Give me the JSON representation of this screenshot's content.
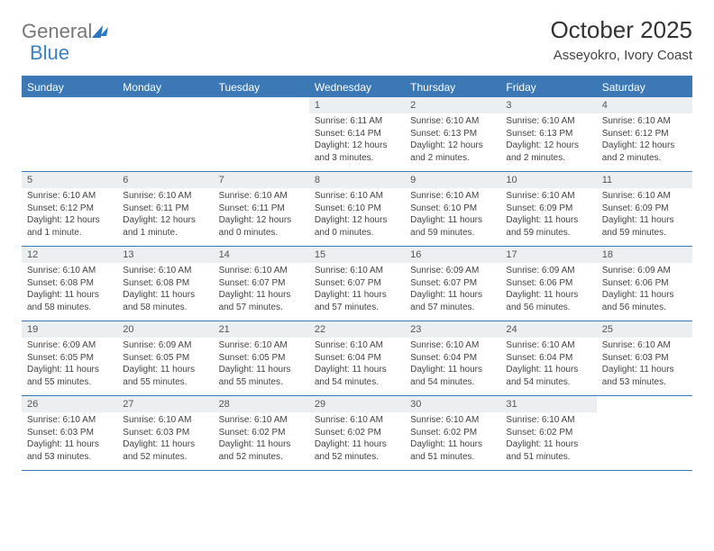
{
  "logo": {
    "text1": "General",
    "text2": "Blue"
  },
  "title": "October 2025",
  "location": "Asseyokro, Ivory Coast",
  "header_bg": "#3b78b5",
  "day_bg": "#eceff1",
  "text_color": "#444444",
  "day_names": [
    "Sunday",
    "Monday",
    "Tuesday",
    "Wednesday",
    "Thursday",
    "Friday",
    "Saturday"
  ],
  "weeks": [
    [
      {
        "empty": true
      },
      {
        "empty": true
      },
      {
        "empty": true
      },
      {
        "n": "1",
        "sr": "Sunrise: 6:11 AM",
        "ss": "Sunset: 6:14 PM",
        "dl": "Daylight: 12 hours and 3 minutes."
      },
      {
        "n": "2",
        "sr": "Sunrise: 6:10 AM",
        "ss": "Sunset: 6:13 PM",
        "dl": "Daylight: 12 hours and 2 minutes."
      },
      {
        "n": "3",
        "sr": "Sunrise: 6:10 AM",
        "ss": "Sunset: 6:13 PM",
        "dl": "Daylight: 12 hours and 2 minutes."
      },
      {
        "n": "4",
        "sr": "Sunrise: 6:10 AM",
        "ss": "Sunset: 6:12 PM",
        "dl": "Daylight: 12 hours and 2 minutes."
      }
    ],
    [
      {
        "n": "5",
        "sr": "Sunrise: 6:10 AM",
        "ss": "Sunset: 6:12 PM",
        "dl": "Daylight: 12 hours and 1 minute."
      },
      {
        "n": "6",
        "sr": "Sunrise: 6:10 AM",
        "ss": "Sunset: 6:11 PM",
        "dl": "Daylight: 12 hours and 1 minute."
      },
      {
        "n": "7",
        "sr": "Sunrise: 6:10 AM",
        "ss": "Sunset: 6:11 PM",
        "dl": "Daylight: 12 hours and 0 minutes."
      },
      {
        "n": "8",
        "sr": "Sunrise: 6:10 AM",
        "ss": "Sunset: 6:10 PM",
        "dl": "Daylight: 12 hours and 0 minutes."
      },
      {
        "n": "9",
        "sr": "Sunrise: 6:10 AM",
        "ss": "Sunset: 6:10 PM",
        "dl": "Daylight: 11 hours and 59 minutes."
      },
      {
        "n": "10",
        "sr": "Sunrise: 6:10 AM",
        "ss": "Sunset: 6:09 PM",
        "dl": "Daylight: 11 hours and 59 minutes."
      },
      {
        "n": "11",
        "sr": "Sunrise: 6:10 AM",
        "ss": "Sunset: 6:09 PM",
        "dl": "Daylight: 11 hours and 59 minutes."
      }
    ],
    [
      {
        "n": "12",
        "sr": "Sunrise: 6:10 AM",
        "ss": "Sunset: 6:08 PM",
        "dl": "Daylight: 11 hours and 58 minutes."
      },
      {
        "n": "13",
        "sr": "Sunrise: 6:10 AM",
        "ss": "Sunset: 6:08 PM",
        "dl": "Daylight: 11 hours and 58 minutes."
      },
      {
        "n": "14",
        "sr": "Sunrise: 6:10 AM",
        "ss": "Sunset: 6:07 PM",
        "dl": "Daylight: 11 hours and 57 minutes."
      },
      {
        "n": "15",
        "sr": "Sunrise: 6:10 AM",
        "ss": "Sunset: 6:07 PM",
        "dl": "Daylight: 11 hours and 57 minutes."
      },
      {
        "n": "16",
        "sr": "Sunrise: 6:09 AM",
        "ss": "Sunset: 6:07 PM",
        "dl": "Daylight: 11 hours and 57 minutes."
      },
      {
        "n": "17",
        "sr": "Sunrise: 6:09 AM",
        "ss": "Sunset: 6:06 PM",
        "dl": "Daylight: 11 hours and 56 minutes."
      },
      {
        "n": "18",
        "sr": "Sunrise: 6:09 AM",
        "ss": "Sunset: 6:06 PM",
        "dl": "Daylight: 11 hours and 56 minutes."
      }
    ],
    [
      {
        "n": "19",
        "sr": "Sunrise: 6:09 AM",
        "ss": "Sunset: 6:05 PM",
        "dl": "Daylight: 11 hours and 55 minutes."
      },
      {
        "n": "20",
        "sr": "Sunrise: 6:09 AM",
        "ss": "Sunset: 6:05 PM",
        "dl": "Daylight: 11 hours and 55 minutes."
      },
      {
        "n": "21",
        "sr": "Sunrise: 6:10 AM",
        "ss": "Sunset: 6:05 PM",
        "dl": "Daylight: 11 hours and 55 minutes."
      },
      {
        "n": "22",
        "sr": "Sunrise: 6:10 AM",
        "ss": "Sunset: 6:04 PM",
        "dl": "Daylight: 11 hours and 54 minutes."
      },
      {
        "n": "23",
        "sr": "Sunrise: 6:10 AM",
        "ss": "Sunset: 6:04 PM",
        "dl": "Daylight: 11 hours and 54 minutes."
      },
      {
        "n": "24",
        "sr": "Sunrise: 6:10 AM",
        "ss": "Sunset: 6:04 PM",
        "dl": "Daylight: 11 hours and 54 minutes."
      },
      {
        "n": "25",
        "sr": "Sunrise: 6:10 AM",
        "ss": "Sunset: 6:03 PM",
        "dl": "Daylight: 11 hours and 53 minutes."
      }
    ],
    [
      {
        "n": "26",
        "sr": "Sunrise: 6:10 AM",
        "ss": "Sunset: 6:03 PM",
        "dl": "Daylight: 11 hours and 53 minutes."
      },
      {
        "n": "27",
        "sr": "Sunrise: 6:10 AM",
        "ss": "Sunset: 6:03 PM",
        "dl": "Daylight: 11 hours and 52 minutes."
      },
      {
        "n": "28",
        "sr": "Sunrise: 6:10 AM",
        "ss": "Sunset: 6:02 PM",
        "dl": "Daylight: 11 hours and 52 minutes."
      },
      {
        "n": "29",
        "sr": "Sunrise: 6:10 AM",
        "ss": "Sunset: 6:02 PM",
        "dl": "Daylight: 11 hours and 52 minutes."
      },
      {
        "n": "30",
        "sr": "Sunrise: 6:10 AM",
        "ss": "Sunset: 6:02 PM",
        "dl": "Daylight: 11 hours and 51 minutes."
      },
      {
        "n": "31",
        "sr": "Sunrise: 6:10 AM",
        "ss": "Sunset: 6:02 PM",
        "dl": "Daylight: 11 hours and 51 minutes."
      },
      {
        "empty": true
      }
    ]
  ]
}
